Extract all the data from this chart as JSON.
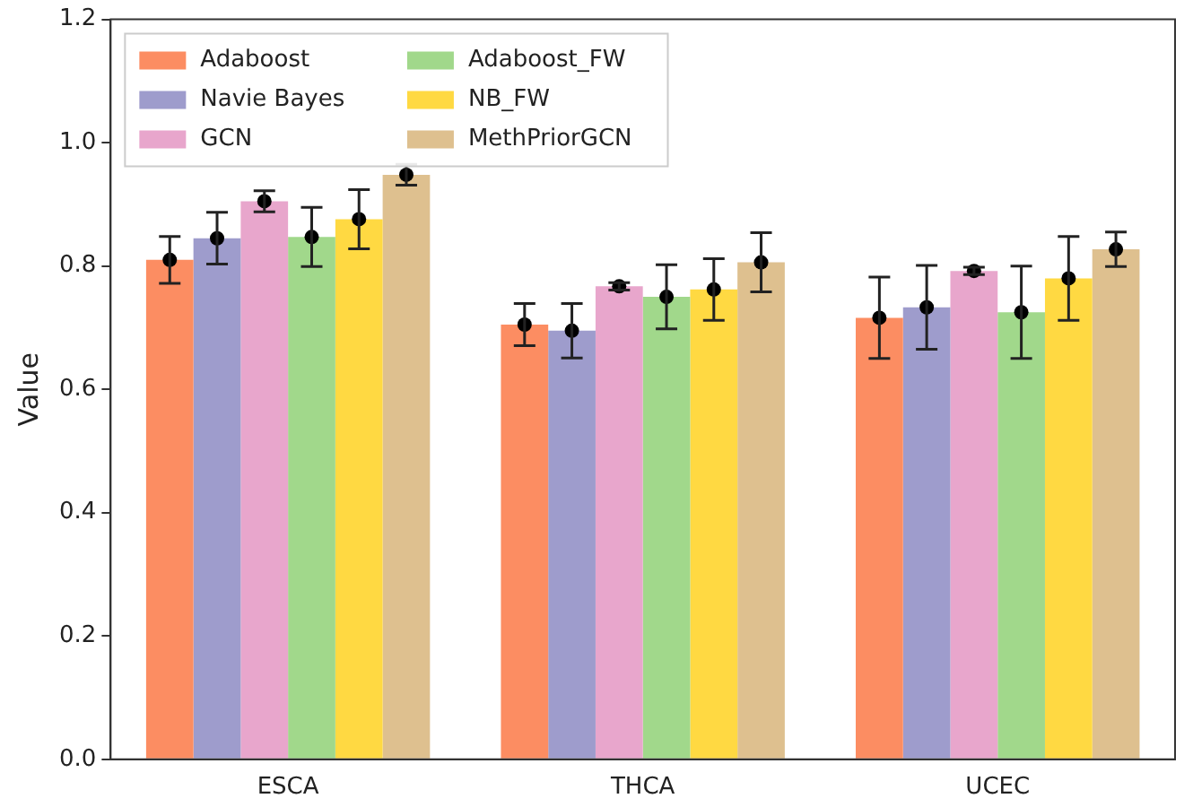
{
  "chart_data": {
    "type": "bar",
    "ylabel": "Value",
    "categories": [
      "ESCA",
      "THCA",
      "UCEC"
    ],
    "series": [
      {
        "name": "Adaboost",
        "color": "#fc8d62",
        "values": [
          0.81,
          0.705,
          0.716
        ]
      },
      {
        "name": "Navie Bayes",
        "color": "#9e9ccc",
        "values": [
          0.845,
          0.695,
          0.733
        ]
      },
      {
        "name": "GCN",
        "color": "#e8a6cc",
        "values": [
          0.905,
          0.767,
          0.792
        ]
      },
      {
        "name": "Adaboost_FW",
        "color": "#a1d88b",
        "values": [
          0.847,
          0.75,
          0.725
        ]
      },
      {
        "name": "NB_FW",
        "color": "#ffd942",
        "values": [
          0.876,
          0.762,
          0.78
        ]
      },
      {
        "name": "MethPriorGCN",
        "color": "#dec08f",
        "values": [
          0.948,
          0.806,
          0.827
        ]
      },
      {
        "type": "scatter",
        "color": "#000000",
        "x": [
          "ESCA",
          "THCA",
          "UCEC"
        ],
        "values": [
          0.81,
          0.705,
          0.716
        ],
        "errors": [
          0.038,
          0.034,
          0.066
        ]
      },
      {
        "type": "scatter",
        "color": "#000000",
        "x": [
          "ESCA",
          "THCA",
          "UCEC"
        ],
        "values": [
          0.845,
          0.695,
          0.733
        ],
        "errors": [
          0.042,
          0.044,
          0.068
        ]
      },
      {
        "type": "scatter",
        "color": "#000000",
        "x": [
          "ESCA",
          "THCA",
          "UCEC"
        ],
        "values": [
          0.905,
          0.767,
          0.792
        ],
        "errors": [
          0.017,
          0.006,
          0.006
        ]
      },
      {
        "type": "scatter",
        "color": "#000000",
        "x": [
          "ESCA",
          "THCA",
          "UCEC"
        ],
        "values": [
          0.847,
          0.75,
          0.725
        ],
        "errors": [
          0.048,
          0.052,
          0.075
        ]
      },
      {
        "type": "scatter",
        "color": "#000000",
        "x": [
          "ESCA",
          "THCA",
          "UCEC"
        ],
        "values": [
          0.876,
          0.762,
          0.78
        ],
        "errors": [
          0.048,
          0.05,
          0.068
        ]
      },
      {
        "type": "scatter",
        "color": "#000000",
        "x": [
          "ESCA",
          "THCA",
          "UCEC"
        ],
        "values": [
          0.948,
          0.806,
          0.827
        ],
        "errors": [
          0.017,
          0.048,
          0.028
        ]
      }
    ],
    "ylim": [
      0,
      1.2
    ],
    "yticks": [
      {
        "value": 0,
        "label": "0.0"
      },
      0.2,
      0.4,
      0.6,
      0.8,
      {
        "value": 1,
        "label": "1.0"
      },
      1.2
    ],
    "marker": "circle",
    "grid": false,
    "legend": "top left"
  }
}
